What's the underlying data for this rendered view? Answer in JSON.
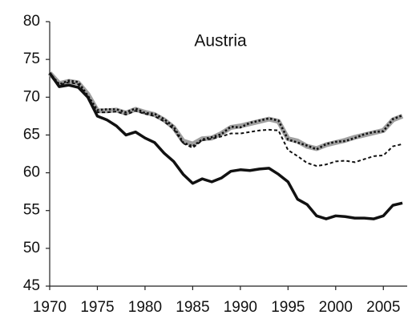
{
  "chart_data": {
    "type": "line",
    "title": "Austria",
    "x": [
      1970,
      1971,
      1972,
      1973,
      1974,
      1975,
      1976,
      1977,
      1978,
      1979,
      1980,
      1981,
      1982,
      1983,
      1984,
      1985,
      1986,
      1987,
      1988,
      1989,
      1990,
      1991,
      1992,
      1993,
      1994,
      1995,
      1996,
      1997,
      1998,
      1999,
      2000,
      2001,
      2002,
      2003,
      2004,
      2005,
      2006,
      2007
    ],
    "series": [
      {
        "color": "#a0a0a0",
        "style": "band",
        "values": [
          73.2,
          71.8,
          72.1,
          71.9,
          70.4,
          68.2,
          68.2,
          68.3,
          67.9,
          68.4,
          68.0,
          67.7,
          67.0,
          66.0,
          64.2,
          63.8,
          64.5,
          64.6,
          65.2,
          66.0,
          66.2,
          66.5,
          66.8,
          67.1,
          66.8,
          64.5,
          64.2,
          63.5,
          63.2,
          63.7,
          64.0,
          64.3,
          64.7,
          65.0,
          65.3,
          65.6,
          67.0,
          67.5
        ]
      },
      {
        "color": "#111111",
        "style": "dotted",
        "values": [
          73.2,
          71.7,
          72.2,
          72.0,
          70.2,
          68.3,
          68.4,
          68.4,
          68.0,
          68.5,
          67.9,
          67.8,
          67.1,
          66.1,
          64.0,
          63.5,
          64.4,
          64.7,
          65.1,
          66.1,
          66.0,
          66.6,
          66.9,
          67.2,
          66.9,
          64.4,
          64.0,
          63.6,
          63.1,
          63.8,
          64.1,
          64.2,
          64.6,
          65.1,
          65.4,
          65.5,
          67.1,
          67.6
        ]
      },
      {
        "color": "#111111",
        "style": "dashed",
        "values": [
          73.1,
          71.6,
          72.0,
          71.7,
          70.0,
          68.0,
          68.0,
          68.1,
          67.7,
          68.2,
          67.8,
          67.5,
          66.8,
          65.8,
          63.9,
          63.3,
          64.3,
          64.5,
          64.8,
          65.2,
          65.2,
          65.4,
          65.6,
          65.7,
          65.6,
          63.0,
          62.2,
          61.3,
          60.9,
          61.1,
          61.5,
          61.6,
          61.4,
          61.8,
          62.2,
          62.3,
          63.5,
          63.8
        ]
      },
      {
        "color": "#111111",
        "style": "solid",
        "values": [
          73.2,
          71.4,
          71.6,
          71.3,
          70.0,
          67.5,
          67.0,
          66.2,
          65.0,
          65.4,
          64.6,
          64.0,
          62.6,
          61.5,
          59.8,
          58.6,
          59.2,
          58.8,
          59.3,
          60.2,
          60.4,
          60.3,
          60.5,
          60.6,
          59.8,
          58.8,
          56.5,
          55.8,
          54.3,
          53.9,
          54.3,
          54.2,
          54.0,
          54.0,
          53.9,
          54.3,
          55.7,
          56.0
        ]
      }
    ],
    "xlim": [
      1970,
      2007.5
    ],
    "xticks": [
      1970,
      1975,
      1980,
      1985,
      1990,
      1995,
      2000,
      2005
    ],
    "ylim": [
      45,
      80
    ],
    "yticks": [
      45,
      50,
      55,
      60,
      65,
      70,
      75,
      80
    ],
    "grid": false
  }
}
